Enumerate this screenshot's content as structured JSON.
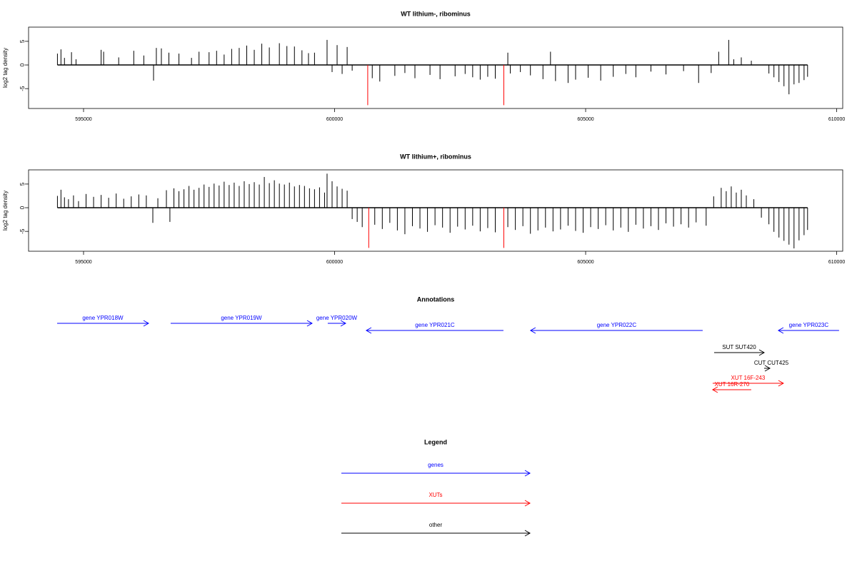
{
  "chart_data": [
    {
      "type": "bar",
      "title": "WT lithium-, ribominus",
      "y_label": "log2 tag density",
      "xlim": [
        593905,
        610120
      ],
      "xticks": [
        595000,
        600000,
        605000,
        610000
      ],
      "ylim": [
        -9.2,
        8
      ],
      "yticks": [
        -5,
        0,
        5
      ],
      "series": [
        {
          "color": "#000000",
          "x": [
            594480,
            594550,
            594620,
            594760,
            594850,
            595350,
            595400,
            595700,
            596000,
            596200,
            596394,
            596450,
            596550,
            596700,
            596900,
            597150,
            597300,
            597500,
            597650,
            597800,
            597950,
            598100,
            598250,
            598400,
            598550,
            598700,
            598900,
            599050,
            599200,
            599350,
            599480,
            599600,
            599850,
            599950,
            600050,
            600150,
            600250,
            600350,
            600750,
            600900,
            601200,
            601400,
            601600,
            601900,
            602100,
            602400,
            602600,
            602750,
            602900,
            603050,
            603200,
            603450,
            603500,
            603700,
            603900,
            604150,
            604300,
            604400,
            604650,
            604800,
            605050,
            605300,
            605550,
            605800,
            606000,
            606300,
            606600,
            606950,
            607250,
            607500,
            607650,
            607850,
            607950,
            608100,
            608300,
            608650,
            608750,
            608850,
            608950,
            609050,
            609150,
            609250,
            609350,
            609420
          ],
          "values": [
            2.4,
            3.3,
            1.5,
            2.7,
            1.2,
            3.2,
            2.8,
            1.6,
            3.0,
            2.0,
            -3.3,
            3.6,
            3.5,
            2.6,
            2.4,
            1.5,
            2.8,
            2.7,
            3.0,
            2.2,
            3.4,
            3.6,
            4.1,
            3.2,
            4.5,
            3.7,
            4.6,
            4.0,
            3.9,
            3.1,
            2.5,
            2.6,
            5.3,
            -1.5,
            4.2,
            -1.9,
            3.8,
            -1.2,
            -2.8,
            -3.5,
            -2.3,
            -1.7,
            -2.8,
            -2.1,
            -3.0,
            -2.4,
            -1.9,
            -2.6,
            -3.1,
            -2.5,
            -2.9,
            2.6,
            -1.8,
            -1.5,
            -2.2,
            -3.0,
            2.8,
            -3.4,
            -3.8,
            -3.1,
            -2.7,
            -3.3,
            -2.5,
            -1.9,
            -2.6,
            -1.4,
            -2.0,
            -1.3,
            -3.8,
            -1.7,
            2.8,
            5.3,
            1.2,
            1.6,
            0.9,
            -1.8,
            -2.6,
            -3.6,
            -4.5,
            -6.2,
            -4.1,
            -3.8,
            -3.2,
            -2.5
          ]
        },
        {
          "color": "#ff0000",
          "x": [
            600660,
            603370
          ],
          "values": [
            -8.5,
            -8.5
          ]
        }
      ]
    },
    {
      "type": "bar",
      "title": "WT lithium+, ribominus",
      "y_label": "log2 tag density",
      "xlim": [
        593905,
        610120
      ],
      "xticks": [
        595000,
        600000,
        605000,
        610000
      ],
      "ylim": [
        -9.2,
        8
      ],
      "yticks": [
        -5,
        0,
        5
      ],
      "series": [
        {
          "color": "#000000",
          "x": [
            594480,
            594550,
            594620,
            594700,
            594800,
            594900,
            595050,
            595200,
            595350,
            595500,
            595650,
            595800,
            595950,
            596100,
            596250,
            596380,
            596480,
            596650,
            596720,
            596800,
            596900,
            597000,
            597100,
            597200,
            597300,
            597400,
            597500,
            597600,
            597700,
            597800,
            597900,
            598000,
            598100,
            598200,
            598300,
            598400,
            598500,
            598600,
            598700,
            598800,
            598900,
            599000,
            599100,
            599200,
            599300,
            599400,
            599500,
            599600,
            599700,
            599800,
            599850,
            599950,
            600050,
            600150,
            600250,
            600350,
            600450,
            600550,
            600800,
            600950,
            601100,
            601250,
            601400,
            601550,
            601700,
            601850,
            602000,
            602150,
            602300,
            602450,
            602600,
            602750,
            602900,
            603050,
            603200,
            603450,
            603600,
            603750,
            603900,
            604050,
            604200,
            604350,
            604500,
            604650,
            604800,
            604950,
            605100,
            605250,
            605400,
            605550,
            605700,
            605850,
            606000,
            606150,
            606300,
            606450,
            606600,
            606750,
            606900,
            607050,
            607200,
            607400,
            607550,
            607700,
            607800,
            607900,
            608000,
            608100,
            608200,
            608350,
            608500,
            608650,
            608750,
            608850,
            608950,
            609050,
            609150,
            609250,
            609350,
            609420
          ],
          "values": [
            2.5,
            3.8,
            2.2,
            1.8,
            2.6,
            1.4,
            2.9,
            2.3,
            2.7,
            2.1,
            3.0,
            1.9,
            2.4,
            2.8,
            2.6,
            -3.2,
            2.0,
            3.7,
            -3.0,
            4.1,
            3.5,
            3.9,
            4.6,
            3.8,
            4.2,
            4.9,
            4.4,
            5.1,
            4.7,
            5.5,
            4.8,
            5.3,
            4.6,
            5.6,
            5.0,
            5.4,
            4.9,
            6.5,
            5.2,
            5.8,
            5.1,
            4.9,
            5.3,
            4.5,
            4.8,
            4.6,
            4.1,
            3.9,
            4.3,
            3.2,
            7.2,
            5.6,
            4.5,
            4.0,
            3.6,
            -2.4,
            -3.0,
            -4.1,
            -3.6,
            -4.5,
            -3.2,
            -4.8,
            -5.6,
            -3.9,
            -4.4,
            -5.1,
            -3.7,
            -4.2,
            -5.3,
            -4.0,
            -4.6,
            -3.8,
            -5.0,
            -4.3,
            -5.2,
            -4.1,
            -4.7,
            -3.9,
            -5.5,
            -4.8,
            -4.2,
            -5.0,
            -4.6,
            -3.8,
            -4.9,
            -5.3,
            -4.1,
            -4.5,
            -3.7,
            -4.8,
            -4.2,
            -5.1,
            -3.6,
            -4.4,
            -3.9,
            -4.7,
            -3.3,
            -4.0,
            -3.5,
            -4.2,
            -3.1,
            -3.8,
            2.4,
            4.2,
            3.5,
            4.5,
            3.2,
            3.8,
            2.6,
            1.8,
            -2.1,
            -3.5,
            -5.1,
            -6.3,
            -7.0,
            -7.8,
            -8.6,
            -6.9,
            -5.8,
            -4.7
          ]
        },
        {
          "color": "#ff0000",
          "x": [
            600680,
            603370
          ],
          "values": [
            -8.5,
            -8.5
          ]
        }
      ]
    }
  ],
  "annotations": {
    "title": "Annotations",
    "features": [
      {
        "label": "gene YPR018W",
        "start": 594474,
        "end": 596294,
        "strand": "+",
        "color": "#0000ff"
      },
      {
        "label": "gene YPR019W",
        "start": 596735,
        "end": 599551,
        "strand": "+",
        "color": "#0000ff"
      },
      {
        "label": "gene YPR020W",
        "start": 599864,
        "end": 600220,
        "strand": "+",
        "color": "#0000ff"
      },
      {
        "label": "gene YPR021C",
        "start": 600632,
        "end": 603363,
        "strand": "-",
        "color": "#0000ff"
      },
      {
        "label": "gene YPR022C",
        "start": 603903,
        "end": 607331,
        "strand": "-",
        "color": "#0000ff"
      },
      {
        "label": "gene YPR023C",
        "start": 608839,
        "end": 610047,
        "strand": "-",
        "color": "#0000ff"
      },
      {
        "label": "SUT SUT420",
        "start": 607559,
        "end": 608555,
        "strand": "+",
        "color": "#000000"
      },
      {
        "label": "CUT CUT425",
        "start": 608555,
        "end": 608669,
        "strand": "+",
        "color": "#000000"
      },
      {
        "label": "XUT 16F-243",
        "start": 607530,
        "end": 608938,
        "strand": "+",
        "color": "#ff0000"
      },
      {
        "label": "XUT 16R-270",
        "start": 607530,
        "end": 608298,
        "strand": "-",
        "color": "#ff0000"
      }
    ]
  },
  "legend": {
    "title": "Legend",
    "items": [
      {
        "label": "genes",
        "color": "#0000ff"
      },
      {
        "label": "XUTs",
        "color": "#ff0000"
      },
      {
        "label": "other",
        "color": "#000000"
      }
    ]
  }
}
